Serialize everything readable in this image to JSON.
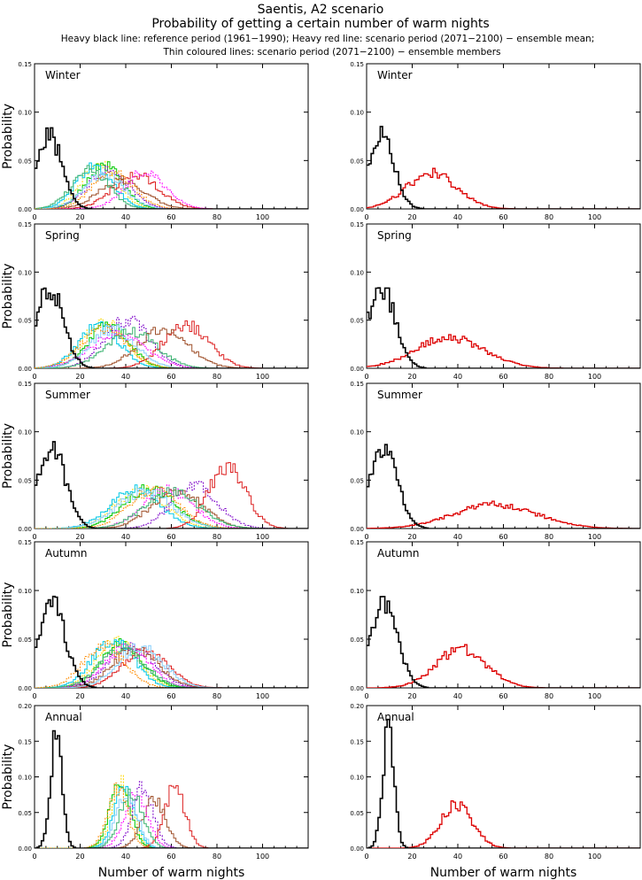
{
  "title": "Saentis, A2 scenario",
  "subtitle": "Probability of getting a certain number of warm nights",
  "caption_line1": "Heavy black line: reference period (1961−1990); Heavy red line: scenario period (2071−2100) − ensemble mean;",
  "caption_line2": "Thin coloured lines: scenario period (2071−2100) − ensemble members",
  "colors": {
    "reference": "#000000",
    "ensemble_mean": "#dd0000",
    "members": [
      "#000000",
      "#ffd700",
      "#00c800",
      "#00c8e6",
      "#7b00c8",
      "#dd2222",
      "#a0522d",
      "#ff00ff",
      "#87cefa",
      "#3cb371",
      "#ff8c00",
      "#1e90ff"
    ]
  },
  "chart_data": [
    {
      "type": "line",
      "panel": "ensemble-members",
      "season": "Winter",
      "ylabel": "Probability",
      "xlabel": "",
      "xlim": [
        0,
        120
      ],
      "ylim": [
        0,
        0.15
      ],
      "xticks": [
        0,
        20,
        40,
        60,
        80,
        100
      ],
      "yticks": [
        "0.00",
        "0.05",
        "0.10",
        "0.15"
      ],
      "series": [
        {
          "role": "reference",
          "peak_x": 6,
          "peak_y": 0.076,
          "spread": 5.5
        },
        {
          "role": "member",
          "peak_x": 28,
          "peak_y": 0.046,
          "spread": 8
        },
        {
          "role": "member",
          "peak_x": 30,
          "peak_y": 0.045,
          "spread": 8
        },
        {
          "role": "member",
          "peak_x": 26,
          "peak_y": 0.044,
          "spread": 8
        },
        {
          "role": "member",
          "peak_x": 32,
          "peak_y": 0.04,
          "spread": 9
        },
        {
          "role": "member",
          "peak_x": 44,
          "peak_y": 0.035,
          "spread": 10
        },
        {
          "role": "member",
          "peak_x": 38,
          "peak_y": 0.03,
          "spread": 10
        },
        {
          "role": "member",
          "peak_x": 48,
          "peak_y": 0.038,
          "spread": 9
        },
        {
          "role": "member",
          "peak_x": 30,
          "peak_y": 0.035,
          "spread": 9
        },
        {
          "role": "member",
          "peak_x": 24,
          "peak_y": 0.042,
          "spread": 8
        },
        {
          "role": "member",
          "peak_x": 34,
          "peak_y": 0.038,
          "spread": 9
        }
      ]
    },
    {
      "type": "line",
      "panel": "ensemble-mean",
      "season": "Winter",
      "ylabel": "",
      "xlabel": "",
      "xlim": [
        0,
        120
      ],
      "ylim": [
        0,
        0.15
      ],
      "xticks": [
        0,
        20,
        40,
        60,
        80,
        100
      ],
      "yticks": [
        "0.00",
        "0.05",
        "0.10",
        "0.15"
      ],
      "series": [
        {
          "role": "reference",
          "peak_x": 6,
          "peak_y": 0.076,
          "spread": 5.5
        },
        {
          "role": "mean",
          "peak_x": 28,
          "peak_y": 0.037,
          "spread": 11
        }
      ]
    },
    {
      "type": "line",
      "panel": "ensemble-members",
      "season": "Spring",
      "ylabel": "Probability",
      "xlabel": "",
      "xlim": [
        0,
        120
      ],
      "ylim": [
        0,
        0.15
      ],
      "xticks": [
        0,
        20,
        40,
        60,
        80,
        100
      ],
      "yticks": [
        "0.00",
        "0.05",
        "0.10",
        "0.15"
      ],
      "series": [
        {
          "role": "reference",
          "peak_x": 6,
          "peak_y": 0.085,
          "spread": 6
        },
        {
          "role": "member",
          "peak_x": 30,
          "peak_y": 0.048,
          "spread": 9
        },
        {
          "role": "member",
          "peak_x": 32,
          "peak_y": 0.045,
          "spread": 9
        },
        {
          "role": "member",
          "peak_x": 28,
          "peak_y": 0.044,
          "spread": 9
        },
        {
          "role": "member",
          "peak_x": 40,
          "peak_y": 0.05,
          "spread": 10
        },
        {
          "role": "member",
          "peak_x": 66,
          "peak_y": 0.045,
          "spread": 10
        },
        {
          "role": "member",
          "peak_x": 56,
          "peak_y": 0.04,
          "spread": 11
        },
        {
          "role": "member",
          "peak_x": 36,
          "peak_y": 0.035,
          "spread": 12
        },
        {
          "role": "member",
          "peak_x": 34,
          "peak_y": 0.04,
          "spread": 10
        },
        {
          "role": "member",
          "peak_x": 42,
          "peak_y": 0.038,
          "spread": 11
        },
        {
          "role": "member",
          "peak_x": 30,
          "peak_y": 0.042,
          "spread": 10
        }
      ]
    },
    {
      "type": "line",
      "panel": "ensemble-mean",
      "season": "Spring",
      "ylabel": "",
      "xlabel": "",
      "xlim": [
        0,
        120
      ],
      "ylim": [
        0,
        0.15
      ],
      "xticks": [
        0,
        20,
        40,
        60,
        80,
        100
      ],
      "yticks": [
        "0.00",
        "0.05",
        "0.10",
        "0.15"
      ],
      "series": [
        {
          "role": "reference",
          "peak_x": 6,
          "peak_y": 0.085,
          "spread": 6
        },
        {
          "role": "mean",
          "peak_x": 36,
          "peak_y": 0.032,
          "spread": 15
        }
      ]
    },
    {
      "type": "line",
      "panel": "ensemble-members",
      "season": "Summer",
      "ylabel": "Probability",
      "xlabel": "",
      "xlim": [
        0,
        120
      ],
      "ylim": [
        0,
        0.15
      ],
      "xticks": [
        0,
        20,
        40,
        60,
        80,
        100
      ],
      "yticks": [
        "0.00",
        "0.05",
        "0.10",
        "0.15"
      ],
      "series": [
        {
          "role": "reference",
          "peak_x": 7,
          "peak_y": 0.085,
          "spread": 6
        },
        {
          "role": "member",
          "peak_x": 46,
          "peak_y": 0.04,
          "spread": 11
        },
        {
          "role": "member",
          "peak_x": 50,
          "peak_y": 0.042,
          "spread": 11
        },
        {
          "role": "member",
          "peak_x": 44,
          "peak_y": 0.04,
          "spread": 11
        },
        {
          "role": "member",
          "peak_x": 70,
          "peak_y": 0.045,
          "spread": 10
        },
        {
          "role": "member",
          "peak_x": 84,
          "peak_y": 0.065,
          "spread": 8
        },
        {
          "role": "member",
          "peak_x": 62,
          "peak_y": 0.04,
          "spread": 11
        },
        {
          "role": "member",
          "peak_x": 58,
          "peak_y": 0.04,
          "spread": 11
        },
        {
          "role": "member",
          "peak_x": 48,
          "peak_y": 0.038,
          "spread": 12
        },
        {
          "role": "member",
          "peak_x": 60,
          "peak_y": 0.038,
          "spread": 12
        },
        {
          "role": "member",
          "peak_x": 52,
          "peak_y": 0.04,
          "spread": 11
        }
      ]
    },
    {
      "type": "line",
      "panel": "ensemble-mean",
      "season": "Summer",
      "ylabel": "",
      "xlabel": "",
      "xlim": [
        0,
        120
      ],
      "ylim": [
        0,
        0.15
      ],
      "xticks": [
        0,
        20,
        40,
        60,
        80,
        100
      ],
      "yticks": [
        "0.00",
        "0.05",
        "0.10",
        "0.15"
      ],
      "series": [
        {
          "role": "reference",
          "peak_x": 7,
          "peak_y": 0.085,
          "spread": 6
        },
        {
          "role": "mean",
          "peak_x": 56,
          "peak_y": 0.025,
          "spread": 18
        }
      ]
    },
    {
      "type": "line",
      "panel": "ensemble-members",
      "season": "Autumn",
      "ylabel": "Probability",
      "xlabel": "",
      "xlim": [
        0,
        120
      ],
      "ylim": [
        0,
        0.15
      ],
      "xticks": [
        0,
        20,
        40,
        60,
        80,
        100
      ],
      "yticks": [
        "0.00",
        "0.05",
        "0.10",
        "0.15"
      ],
      "series": [
        {
          "role": "reference",
          "peak_x": 7,
          "peak_y": 0.086,
          "spread": 6
        },
        {
          "role": "member",
          "peak_x": 36,
          "peak_y": 0.048,
          "spread": 9
        },
        {
          "role": "member",
          "peak_x": 38,
          "peak_y": 0.045,
          "spread": 9
        },
        {
          "role": "member",
          "peak_x": 34,
          "peak_y": 0.05,
          "spread": 9
        },
        {
          "role": "member",
          "peak_x": 42,
          "peak_y": 0.042,
          "spread": 10
        },
        {
          "role": "member",
          "peak_x": 48,
          "peak_y": 0.038,
          "spread": 10
        },
        {
          "role": "member",
          "peak_x": 44,
          "peak_y": 0.04,
          "spread": 10
        },
        {
          "role": "member",
          "peak_x": 40,
          "peak_y": 0.04,
          "spread": 10
        },
        {
          "role": "member",
          "peak_x": 46,
          "peak_y": 0.042,
          "spread": 10
        },
        {
          "role": "member",
          "peak_x": 38,
          "peak_y": 0.04,
          "spread": 10
        },
        {
          "role": "member",
          "peak_x": 30,
          "peak_y": 0.044,
          "spread": 9
        }
      ]
    },
    {
      "type": "line",
      "panel": "ensemble-mean",
      "season": "Autumn",
      "ylabel": "",
      "xlabel": "",
      "xlim": [
        0,
        120
      ],
      "ylim": [
        0,
        0.15
      ],
      "xticks": [
        0,
        20,
        40,
        60,
        80,
        100
      ],
      "yticks": [
        "0.00",
        "0.05",
        "0.10",
        "0.15"
      ],
      "series": [
        {
          "role": "reference",
          "peak_x": 7,
          "peak_y": 0.086,
          "spread": 6
        },
        {
          "role": "mean",
          "peak_x": 41,
          "peak_y": 0.04,
          "spread": 11
        }
      ]
    },
    {
      "type": "line",
      "panel": "ensemble-members",
      "season": "Annual",
      "ylabel": "Probability",
      "xlabel": "Number of warm nights",
      "xlim": [
        0,
        120
      ],
      "ylim": [
        0,
        0.2
      ],
      "xticks": [
        0,
        20,
        40,
        60,
        80,
        100
      ],
      "yticks": [
        "0.00",
        "0.05",
        "0.10",
        "0.15",
        "0.20"
      ],
      "series": [
        {
          "role": "reference",
          "peak_x": 9,
          "peak_y": 0.16,
          "spread": 2.5
        },
        {
          "role": "member",
          "peak_x": 38,
          "peak_y": 0.09,
          "spread": 4.5
        },
        {
          "role": "member",
          "peak_x": 37,
          "peak_y": 0.088,
          "spread": 4.5
        },
        {
          "role": "member",
          "peak_x": 39,
          "peak_y": 0.085,
          "spread": 4.5
        },
        {
          "role": "member",
          "peak_x": 47,
          "peak_y": 0.085,
          "spread": 4.5
        },
        {
          "role": "member",
          "peak_x": 61,
          "peak_y": 0.085,
          "spread": 4.5
        },
        {
          "role": "member",
          "peak_x": 52,
          "peak_y": 0.07,
          "spread": 5
        },
        {
          "role": "member",
          "peak_x": 44,
          "peak_y": 0.075,
          "spread": 5
        },
        {
          "role": "member",
          "peak_x": 40,
          "peak_y": 0.08,
          "spread": 4.5
        },
        {
          "role": "member",
          "peak_x": 42,
          "peak_y": 0.078,
          "spread": 5
        },
        {
          "role": "member",
          "peak_x": 36,
          "peak_y": 0.082,
          "spread": 4.5
        }
      ]
    },
    {
      "type": "line",
      "panel": "ensemble-mean",
      "season": "Annual",
      "ylabel": "",
      "xlabel": "Number of warm nights",
      "xlim": [
        0,
        120
      ],
      "ylim": [
        0,
        0.2
      ],
      "xticks": [
        0,
        20,
        40,
        60,
        80,
        100
      ],
      "yticks": [
        "0.00",
        "0.05",
        "0.10",
        "0.15",
        "0.20"
      ],
      "series": [
        {
          "role": "reference",
          "peak_x": 9,
          "peak_y": 0.16,
          "spread": 2.5
        },
        {
          "role": "mean",
          "peak_x": 39,
          "peak_y": 0.062,
          "spread": 7
        }
      ]
    }
  ]
}
